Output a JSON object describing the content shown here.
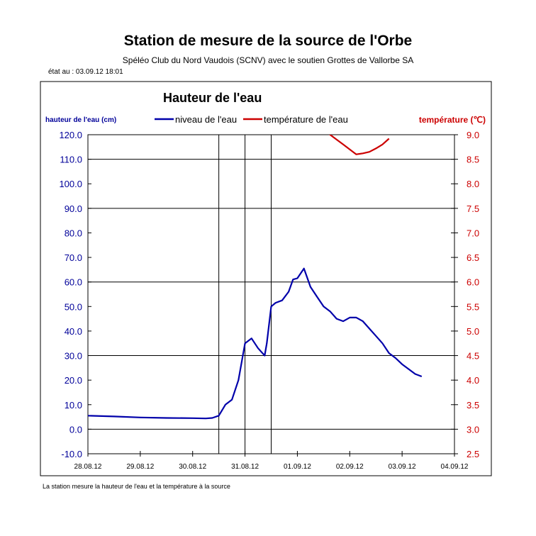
{
  "header": {
    "title": "Station de mesure de la source de l'Orbe",
    "subtitle": "Spéléo Club du Nord Vaudois (SCNV) avec le soutien Grottes de Vallorbe SA",
    "status": "état au :  03.09.12 18:01"
  },
  "footer": {
    "note": "La station mesure la hauteur de l'eau et la température à la source"
  },
  "colors": {
    "level": "#0000aa",
    "temperature": "#cc0000",
    "left_axis_text": "#000099",
    "right_axis_text": "#cc0000"
  },
  "chart_data": {
    "type": "line",
    "title": "Hauteur de l'eau",
    "ylabel": "hauteur de l'eau (cm)",
    "y2label": "température (℃)",
    "legend_position": "top-center",
    "grid": true,
    "ylim": [
      -10,
      120
    ],
    "y2lim": [
      2.5,
      9.0
    ],
    "yticks": [
      "120.0",
      "110.0",
      "100.0",
      "90.0",
      "80.0",
      "70.0",
      "60.0",
      "50.0",
      "40.0",
      "30.0",
      "20.0",
      "10.0",
      "0.0",
      "-10.0"
    ],
    "y2ticks": [
      "9.0",
      "8.5",
      "8.0",
      "7.5",
      "7.0",
      "6.5",
      "6.0",
      "5.5",
      "5.0",
      "4.5",
      "4.0",
      "3.5",
      "3.0",
      "2.5"
    ],
    "xticks": [
      "28.08.12",
      "29.08.12",
      "30.08.12",
      "31.08.12",
      "01.09.12",
      "02.09.12",
      "03.09.12",
      "04.09.12"
    ],
    "xlim": [
      "28.08.12 00:00",
      "04.09.12 00:00"
    ],
    "vertical_markers": [
      "30.08.12 12:00",
      "31.08.12 00:00",
      "31.08.12 12:00"
    ],
    "series": [
      {
        "name": "niveau de l'eau",
        "axis": "left",
        "x": [
          "28.08.12 00:00",
          "28.08.12 12:00",
          "29.08.12 00:00",
          "29.08.12 12:00",
          "30.08.12 00:00",
          "30.08.12 06:00",
          "30.08.12 09:00",
          "30.08.12 12:00",
          "30.08.12 15:00",
          "30.08.12 18:00",
          "30.08.12 21:00",
          "31.08.12 00:00",
          "31.08.12 03:00",
          "31.08.12 06:00",
          "31.08.12 09:00",
          "31.08.12 10:00",
          "31.08.12 12:00",
          "31.08.12 14:00",
          "31.08.12 17:00",
          "31.08.12 20:00",
          "31.08.12 22:00",
          "01.09.12 00:00",
          "01.09.12 03:00",
          "01.09.12 06:00",
          "01.09.12 09:00",
          "01.09.12 12:00",
          "01.09.12 15:00",
          "01.09.12 18:00",
          "01.09.12 21:00",
          "02.09.12 00:00",
          "02.09.12 03:00",
          "02.09.12 06:00",
          "02.09.12 09:00",
          "02.09.12 12:00",
          "02.09.12 15:00",
          "02.09.12 18:00",
          "02.09.12 21:00",
          "03.09.12 00:00",
          "03.09.12 03:00",
          "03.09.12 06:00",
          "03.09.12 09:00",
          "03.09.12 12:00",
          "03.09.12 15:00",
          "03.09.12 18:00"
        ],
        "y": [
          5.5,
          5.2,
          4.8,
          4.6,
          4.5,
          4.4,
          4.6,
          5.5,
          10.0,
          12.0,
          20.0,
          35.0,
          37.0,
          33.0,
          30.0,
          35.0,
          50.0,
          51.5,
          52.5,
          56.0,
          61.0,
          61.5,
          65.5,
          58.0,
          54.0,
          50.0,
          48.0,
          45.0,
          44.0,
          45.5,
          45.5,
          44.0,
          41.0,
          38.0,
          35.0,
          31.0,
          29.0,
          26.5,
          24.5,
          22.5,
          21.5,
          null,
          null,
          null
        ]
      },
      {
        "name": "température de l'eau",
        "axis": "right",
        "x": [
          "01.09.12 12:00",
          "01.09.12 15:00",
          "01.09.12 18:00",
          "01.09.12 21:00",
          "02.09.12 00:00",
          "02.09.12 03:00",
          "02.09.12 06:00",
          "02.09.12 09:00",
          "02.09.12 12:00",
          "02.09.12 15:00",
          "02.09.12 18:00"
        ],
        "y": [
          9.1,
          9.0,
          8.9,
          8.8,
          8.7,
          8.6,
          8.62,
          8.65,
          8.72,
          8.8,
          8.92
        ]
      }
    ]
  }
}
